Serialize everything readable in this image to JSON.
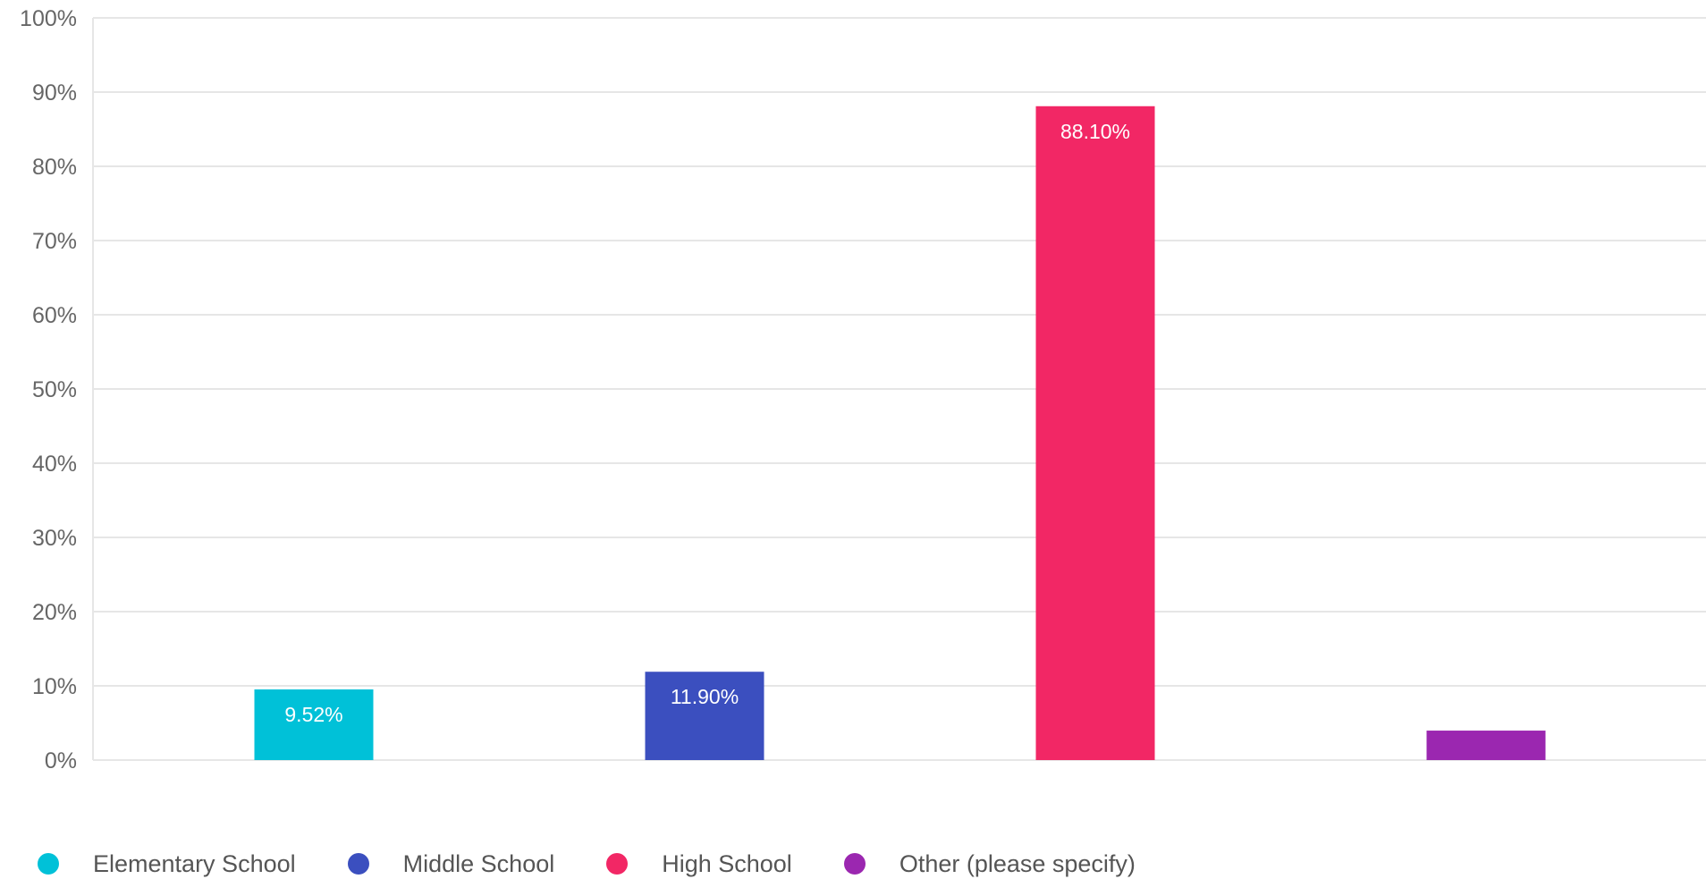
{
  "chart_data": {
    "type": "bar",
    "categories": [
      "Elementary School",
      "Middle School",
      "High School",
      "Other (please specify)"
    ],
    "values": [
      9.52,
      11.9,
      88.1,
      3.97
    ],
    "data_labels": [
      "9.52%",
      "11.90%",
      "88.10%",
      ""
    ],
    "colors": [
      "#00c1d8",
      "#3b4fbf",
      "#f22765",
      "#9b27b0"
    ],
    "title": "",
    "xlabel": "",
    "ylabel": "",
    "ylim": [
      0,
      100
    ],
    "yticks": [
      "0%",
      "10%",
      "20%",
      "30%",
      "40%",
      "50%",
      "60%",
      "70%",
      "80%",
      "90%",
      "100%"
    ],
    "grid": true,
    "legend_position": "bottom-left"
  }
}
